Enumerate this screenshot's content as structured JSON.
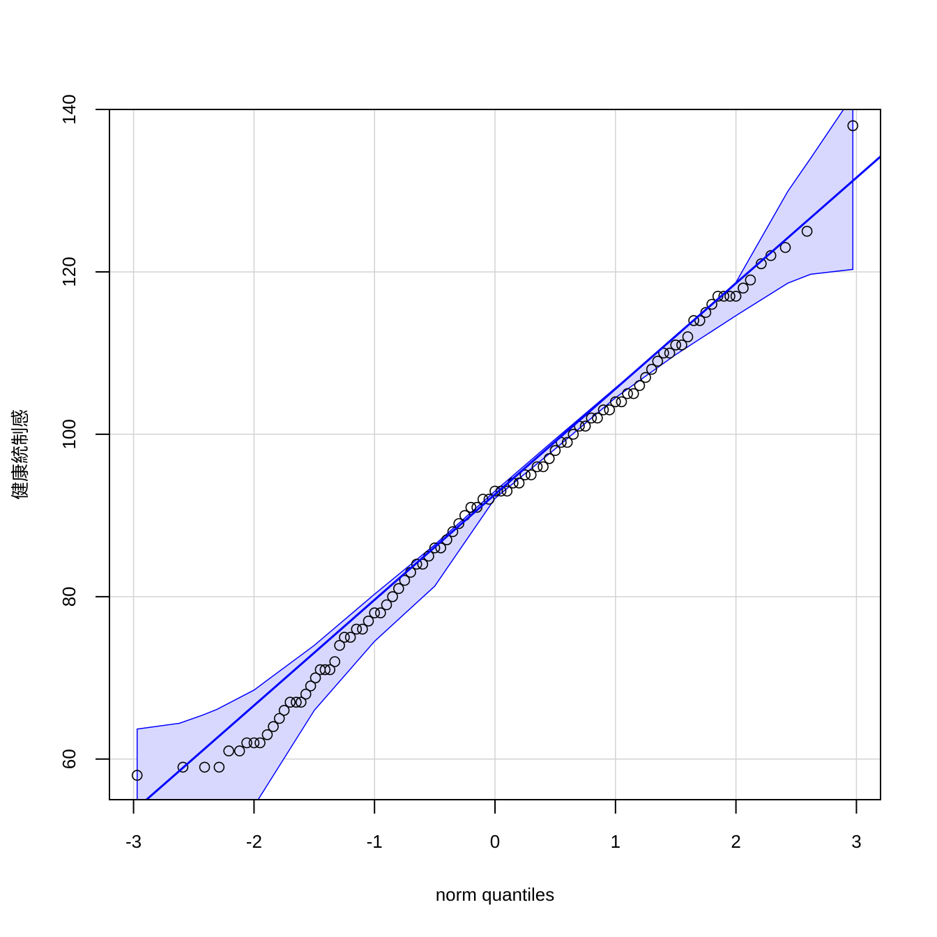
{
  "chart_data": {
    "type": "scatter",
    "subtype": "qq-plot",
    "title": "",
    "xlabel": "norm quantiles",
    "ylabel": "健康統制感",
    "xlim": [
      -3.2,
      3.2
    ],
    "ylim": [
      55,
      140
    ],
    "xticks": [
      -3,
      -2,
      -1,
      0,
      1,
      2,
      3
    ],
    "yticks": [
      60,
      80,
      100,
      120,
      140
    ],
    "grid": true,
    "legend": "none",
    "colors": {
      "points": "#000000",
      "line": "#0000ff",
      "envelope_fill": "#d8d8ff",
      "envelope_stroke": "#0000ff",
      "grid": "#d3d3d3"
    },
    "reference_line": {
      "intercept": 92.6,
      "slope": 13.0
    },
    "envelope": {
      "x": [
        -2.97,
        -2.62,
        -2.43,
        -2.31,
        -2.0,
        -1.5,
        -1.0,
        -0.5,
        0.0,
        0.5,
        1.0,
        1.5,
        2.0,
        2.43,
        2.62,
        2.97
      ],
      "upper": [
        63.7,
        64.4,
        65.4,
        66.1,
        68.5,
        74.0,
        80.3,
        86.4,
        93.0,
        99.4,
        105.7,
        112.0,
        118.7,
        129.9,
        134.0,
        141.7
      ],
      "lower": [
        54.0,
        54.0,
        54.0,
        54.0,
        54.2,
        66.0,
        74.5,
        81.3,
        92.1,
        98.2,
        104.5,
        109.8,
        114.6,
        118.6,
        119.7,
        120.3
      ]
    },
    "points": {
      "x": [
        -2.97,
        -2.59,
        -2.41,
        -2.29,
        -2.21,
        -2.12,
        -2.06,
        -2.0,
        -1.95,
        -1.89,
        -1.84,
        -1.79,
        -1.75,
        -1.7,
        -1.65,
        -1.61,
        -1.57,
        -1.53,
        -1.49,
        -1.45,
        -1.41,
        -1.37,
        -1.33,
        -1.29,
        -1.25,
        -1.2,
        -1.15,
        -1.1,
        -1.05,
        -1.0,
        -0.95,
        -0.9,
        -0.85,
        -0.8,
        -0.75,
        -0.7,
        -0.65,
        -0.6,
        -0.55,
        -0.5,
        -0.45,
        -0.4,
        -0.35,
        -0.3,
        -0.25,
        -0.2,
        -0.15,
        -0.1,
        -0.05,
        0.0,
        0.05,
        0.1,
        0.15,
        0.2,
        0.25,
        0.3,
        0.35,
        0.4,
        0.45,
        0.5,
        0.55,
        0.6,
        0.65,
        0.7,
        0.75,
        0.8,
        0.85,
        0.9,
        0.95,
        1.0,
        1.05,
        1.1,
        1.15,
        1.2,
        1.25,
        1.3,
        1.35,
        1.4,
        1.45,
        1.5,
        1.55,
        1.6,
        1.65,
        1.7,
        1.75,
        1.8,
        1.85,
        1.9,
        1.95,
        2.0,
        2.06,
        2.12,
        2.21,
        2.29,
        2.41,
        2.59,
        2.97
      ],
      "y": [
        58,
        59,
        59,
        59,
        61,
        61,
        62,
        62,
        62,
        63,
        64,
        65,
        66,
        67,
        67,
        67,
        68,
        69,
        70,
        71,
        71,
        71,
        72,
        74,
        75,
        75,
        76,
        76,
        77,
        78,
        78,
        79,
        80,
        81,
        82,
        83,
        84,
        84,
        85,
        86,
        86,
        87,
        88,
        89,
        90,
        91,
        91,
        92,
        92,
        93,
        93,
        93,
        94,
        94,
        95,
        95,
        96,
        96,
        97,
        98,
        99,
        99,
        100,
        101,
        101,
        102,
        102,
        103,
        103,
        104,
        104,
        105,
        105,
        106,
        107,
        108,
        109,
        110,
        110,
        111,
        111,
        112,
        114,
        114,
        115,
        116,
        117,
        117,
        117,
        117,
        118,
        119,
        121,
        122,
        123,
        125,
        138
      ]
    }
  }
}
